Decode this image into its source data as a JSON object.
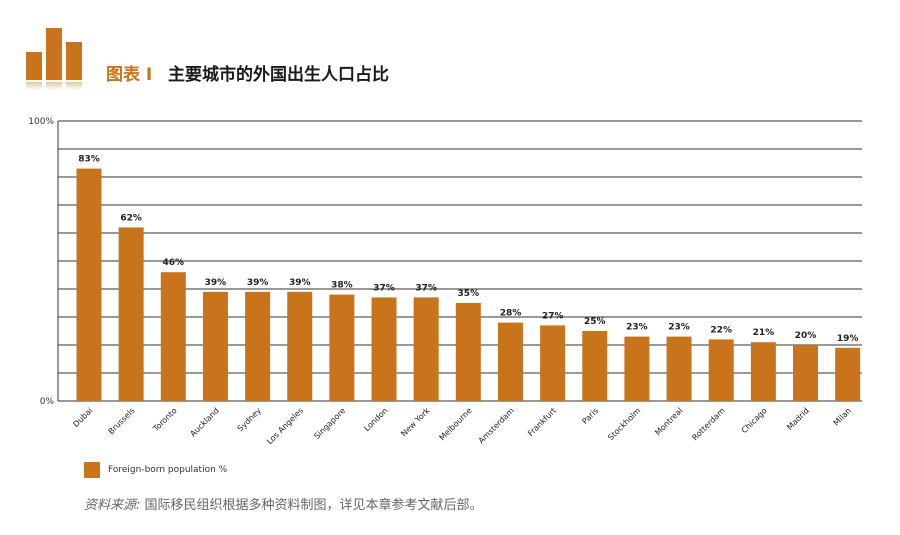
{
  "header": {
    "figure_label": "图表 I",
    "title": "主要城市的外国出生人口占比"
  },
  "colors": {
    "bar": "#c8741c",
    "grid": "#333333"
  },
  "icons": {
    "logo": "bar-chart-logo-icon"
  },
  "chart_data": {
    "type": "bar",
    "title": "主要城市的外国出生人口占比",
    "categories": [
      "Dubai",
      "Brussels",
      "Toronto",
      "Auckland",
      "Sydney",
      "Los Angeles",
      "Singapore",
      "London",
      "New York",
      "Melbourne",
      "Amsterdam",
      "Frankfurt",
      "Paris",
      "Stockholm",
      "Montreal",
      "Rotterdam",
      "Chicago",
      "Madrid",
      "Milan"
    ],
    "series": [
      {
        "name": "Foreign-born population %",
        "values": [
          83,
          62,
          46,
          39,
          39,
          39,
          38,
          37,
          37,
          35,
          28,
          27,
          25,
          23,
          23,
          22,
          21,
          20,
          19
        ]
      }
    ],
    "value_labels": [
      "83%",
      "62%",
      "46%",
      "39%",
      "39%",
      "39%",
      "38%",
      "37%",
      "37%",
      "35%",
      "28%",
      "27%",
      "25%",
      "23%",
      "23%",
      "22%",
      "21%",
      "20%",
      "19%"
    ],
    "ylim": [
      0,
      100
    ],
    "ytick_labels": [
      "100%",
      "0%"
    ],
    "xlabel": "",
    "ylabel": "",
    "grid": true,
    "legend": "bottom-left"
  },
  "legend": {
    "label": "Foreign-born population %"
  },
  "source": {
    "label": "资料来源:",
    "text": " 国际移民组织根据多种资料制图，详见本章参考文献后部。"
  }
}
